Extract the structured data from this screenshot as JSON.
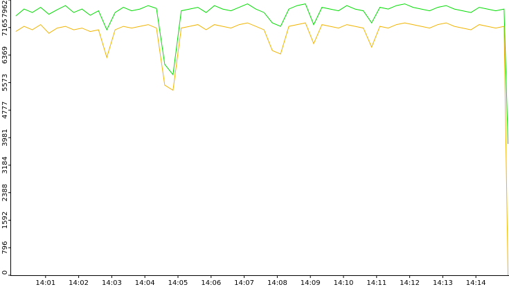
{
  "chart_data": {
    "type": "line",
    "x": [
      0.1,
      0.35,
      0.6,
      0.85,
      1.1,
      1.35,
      1.6,
      1.85,
      2.1,
      2.35,
      2.6,
      2.85,
      3.1,
      3.35,
      3.6,
      3.85,
      4.1,
      4.35,
      4.6,
      4.85,
      5.1,
      5.35,
      5.6,
      5.85,
      6.1,
      6.35,
      6.6,
      6.85,
      7.1,
      7.35,
      7.6,
      7.85,
      8.1,
      8.35,
      8.6,
      8.85,
      9.1,
      9.35,
      9.6,
      9.85,
      10.1,
      10.35,
      10.6,
      10.85,
      11.1,
      11.35,
      11.6,
      11.85,
      12.1,
      12.35,
      12.6,
      12.85,
      13.1,
      13.35,
      13.6,
      13.85,
      14.1,
      14.35,
      14.6,
      14.85,
      14.97
    ],
    "series": [
      {
        "color": "#00dd00",
        "values": [
          7500,
          7700,
          7600,
          7750,
          7550,
          7680,
          7800,
          7600,
          7700,
          7520,
          7650,
          7100,
          7600,
          7750,
          7650,
          7700,
          7800,
          7720,
          6100,
          5800,
          7650,
          7700,
          7750,
          7600,
          7800,
          7700,
          7650,
          7750,
          7850,
          7700,
          7600,
          7300,
          7200,
          7700,
          7800,
          7850,
          7250,
          7750,
          7700,
          7650,
          7800,
          7700,
          7650,
          7300,
          7750,
          7700,
          7800,
          7850,
          7750,
          7700,
          7650,
          7750,
          7800,
          7700,
          7650,
          7600,
          7750,
          7700,
          7650,
          7700,
          3800
        ]
      },
      {
        "color": "#f0b400",
        "values": [
          7050,
          7200,
          7100,
          7250,
          7000,
          7150,
          7200,
          7100,
          7150,
          7050,
          7100,
          6300,
          7100,
          7200,
          7150,
          7200,
          7250,
          7150,
          5500,
          5350,
          7150,
          7200,
          7250,
          7100,
          7250,
          7200,
          7150,
          7250,
          7300,
          7200,
          7100,
          6500,
          6400,
          7200,
          7250,
          7300,
          6700,
          7250,
          7200,
          7150,
          7250,
          7200,
          7150,
          6600,
          7200,
          7150,
          7250,
          7300,
          7250,
          7200,
          7150,
          7250,
          7300,
          7200,
          7150,
          7100,
          7250,
          7200,
          7150,
          7200,
          0
        ]
      }
    ],
    "xlim": [
      0,
      15
    ],
    "xticks": [
      {
        "value": 1,
        "label": "14:01"
      },
      {
        "value": 2,
        "label": "14:02"
      },
      {
        "value": 3,
        "label": "14:03"
      },
      {
        "value": 4,
        "label": "14:04"
      },
      {
        "value": 5,
        "label": "14:05"
      },
      {
        "value": 6,
        "label": "14:06"
      },
      {
        "value": 7,
        "label": "14:07"
      },
      {
        "value": 8,
        "label": "14:08"
      },
      {
        "value": 9,
        "label": "14:09"
      },
      {
        "value": 10,
        "label": "14:10"
      },
      {
        "value": 11,
        "label": "14:11"
      },
      {
        "value": 12,
        "label": "14:12"
      },
      {
        "value": 13,
        "label": "14:13"
      },
      {
        "value": 14,
        "label": "14:14"
      }
    ],
    "ylim": [
      0,
      7962
    ],
    "yticks": [
      0,
      796,
      1592,
      2388,
      3184,
      3981,
      4777,
      5573,
      6369,
      7165,
      7962
    ]
  }
}
